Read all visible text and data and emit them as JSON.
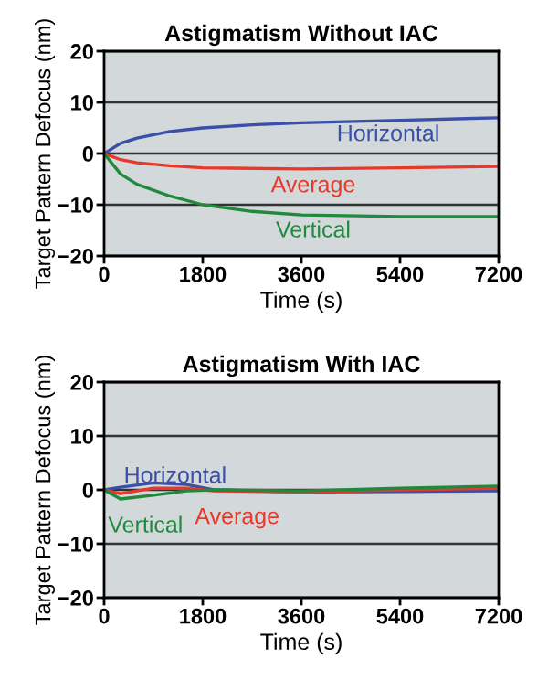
{
  "chart_data": [
    {
      "type": "line",
      "title": "Astigmatism Without IAC",
      "xlabel": "Time (s)",
      "ylabel": "Target Pattern Defocus (nm)",
      "xlim": [
        0,
        7200
      ],
      "xticks": [
        0,
        1800,
        3600,
        5400,
        7200
      ],
      "ylim": [
        -20,
        20
      ],
      "yticks": [
        -20,
        -10,
        0,
        10,
        20
      ],
      "grid": "y",
      "line_style": "solid",
      "marker": "none",
      "series": [
        {
          "name": "Horizontal",
          "color": "#3a4fa8",
          "x": [
            0,
            300,
            600,
            1200,
            1800,
            2700,
            3600,
            5400,
            7200
          ],
          "values": [
            0,
            2,
            3,
            4.3,
            5,
            5.6,
            6,
            6.5,
            7
          ]
        },
        {
          "name": "Average",
          "color": "#e8382a",
          "x": [
            0,
            300,
            600,
            1200,
            1800,
            3600,
            5400,
            7200
          ],
          "values": [
            0,
            -1.2,
            -1.8,
            -2.4,
            -2.8,
            -3,
            -2.8,
            -2.5
          ]
        },
        {
          "name": "Vertical",
          "color": "#1f8a3c",
          "x": [
            0,
            300,
            600,
            1200,
            1800,
            2700,
            3600,
            5400,
            7200
          ],
          "values": [
            0,
            -4,
            -6,
            -8.3,
            -10,
            -11.3,
            -12,
            -12.3,
            -12.3
          ]
        }
      ]
    },
    {
      "type": "line",
      "title": "Astigmatism With IAC",
      "xlabel": "Time (s)",
      "ylabel": "Target Pattern Defocus (nm)",
      "xlim": [
        0,
        7200
      ],
      "xticks": [
        0,
        1800,
        3600,
        5400,
        7200
      ],
      "ylim": [
        -20,
        20
      ],
      "yticks": [
        -20,
        -10,
        0,
        10,
        20
      ],
      "grid": "y",
      "line_style": "solid",
      "marker": "none",
      "series": [
        {
          "name": "Horizontal",
          "color": "#3a4fa8",
          "x": [
            0,
            300,
            900,
            1500,
            2000,
            3600,
            5400,
            7200
          ],
          "values": [
            0,
            0.5,
            1.3,
            1,
            0,
            -0.4,
            -0.3,
            -0.2
          ]
        },
        {
          "name": "Average",
          "color": "#e8382a",
          "x": [
            0,
            300,
            900,
            1500,
            2000,
            3600,
            5400,
            7200
          ],
          "values": [
            0,
            -0.7,
            0.3,
            0.3,
            -0.2,
            -0.4,
            0,
            0.3
          ]
        },
        {
          "name": "Vertical",
          "color": "#1f8a3c",
          "x": [
            0,
            300,
            900,
            1500,
            2000,
            3600,
            5400,
            7200
          ],
          "values": [
            0,
            -1.7,
            -1,
            -0.2,
            0,
            -0.2,
            0.3,
            0.7
          ]
        }
      ]
    }
  ]
}
